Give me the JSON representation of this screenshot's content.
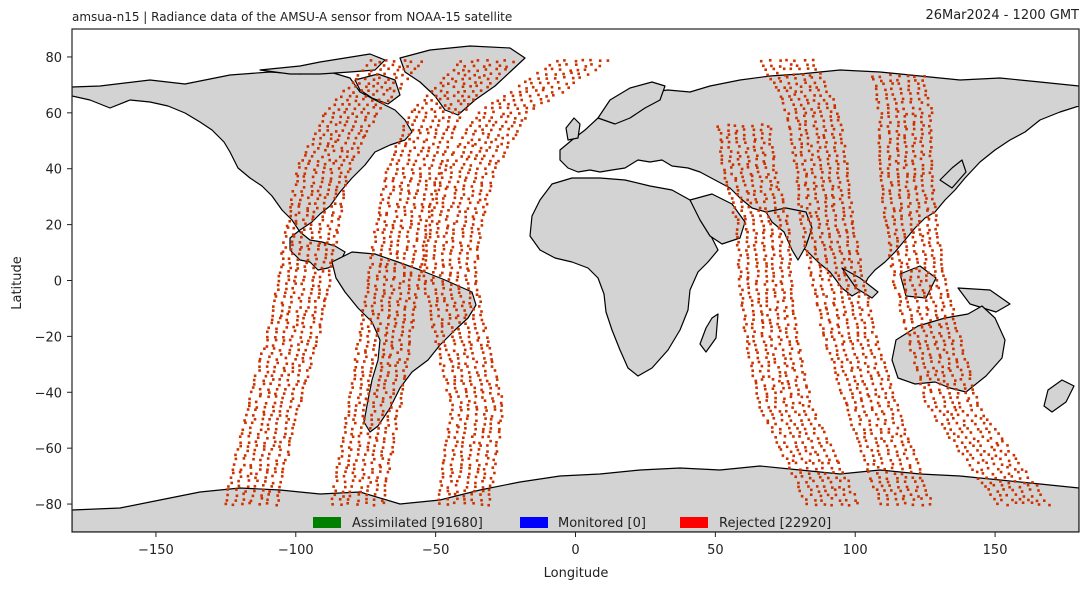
{
  "header": {
    "title_left": "amsua-n15  |  Radiance data of the AMSU-A sensor from NOAA-15 satellite",
    "title_right": "26Mar2024 - 1200 GMT"
  },
  "colors": {
    "land": "#d3d3d3",
    "coast": "#000000",
    "ocean": "#ffffff",
    "rejected_fill": "#cc3300",
    "assimilated": "#008000",
    "monitored": "#0000ff",
    "rejected": "#ff0000"
  },
  "chart_data": {
    "type": "scatter",
    "title": "amsua-n15  |  Radiance data of the AMSU-A sensor from NOAA-15 satellite",
    "xlabel": "Longitude",
    "ylabel": "Latitude",
    "xlim": [
      -180,
      180
    ],
    "ylim": [
      -90,
      90
    ],
    "x_ticks": [
      -150,
      -100,
      -50,
      0,
      50,
      100,
      150
    ],
    "y_ticks": [
      -80,
      -60,
      -40,
      -20,
      0,
      20,
      40,
      60,
      80
    ],
    "legend": {
      "placement": "bottom-center",
      "entries": [
        {
          "label": "Assimilated [91680]",
          "color": "#008000",
          "count": 91680
        },
        {
          "label": "Monitored [0]",
          "color": "#0000ff",
          "count": 0
        },
        {
          "label": "Rejected [22920]",
          "color": "#ff0000",
          "count": 22920
        }
      ]
    },
    "series": [
      {
        "name": "Rejected [22920]",
        "swaths": [
          {
            "centerline": [
              [
                -116,
                -80
              ],
              [
                -108,
                -45
              ],
              [
                -101,
                -20
              ],
              [
                -97,
                0
              ],
              [
                -94,
                20
              ],
              [
                -90,
                40
              ],
              [
                -80,
                60
              ],
              [
                -63,
                80
              ]
            ]
          },
          {
            "centerline": [
              [
                -78,
                -80
              ],
              [
                -72,
                -45
              ],
              [
                -68,
                -20
              ],
              [
                -65,
                0
              ],
              [
                -62,
                20
              ],
              [
                -58,
                40
              ],
              [
                -50,
                60
              ],
              [
                -30,
                80
              ]
            ]
          },
          {
            "centerline": [
              [
                -40,
                -80
              ],
              [
                -35,
                -45
              ],
              [
                -41,
                -20
              ],
              [
                -45,
                0
              ],
              [
                -43,
                20
              ],
              [
                -38,
                40
              ],
              [
                -26,
                60
              ],
              [
                5,
                80
              ]
            ]
          },
          {
            "centerline": [
              [
                92,
                -80
              ],
              [
                75,
                -45
              ],
              [
                70,
                -20
              ],
              [
                68,
                0
              ],
              [
                67,
                20
              ],
              [
                62,
                40
              ],
              [
                60,
                57
              ]
            ]
          },
          {
            "centerline": [
              [
                118,
                -80
              ],
              [
                106,
                -45
              ],
              [
                98,
                -20
              ],
              [
                94,
                0
              ],
              [
                90,
                20
              ],
              [
                88,
                40
              ],
              [
                85,
                60
              ],
              [
                75,
                80
              ]
            ]
          },
          {
            "centerline": [
              [
                160,
                -80
              ],
              [
                135,
                -45
              ],
              [
                128,
                -20
              ],
              [
                123,
                0
              ],
              [
                120,
                20
              ],
              [
                118,
                40
              ],
              [
                118,
                60
              ],
              [
                115,
                75
              ]
            ]
          }
        ]
      }
    ]
  }
}
